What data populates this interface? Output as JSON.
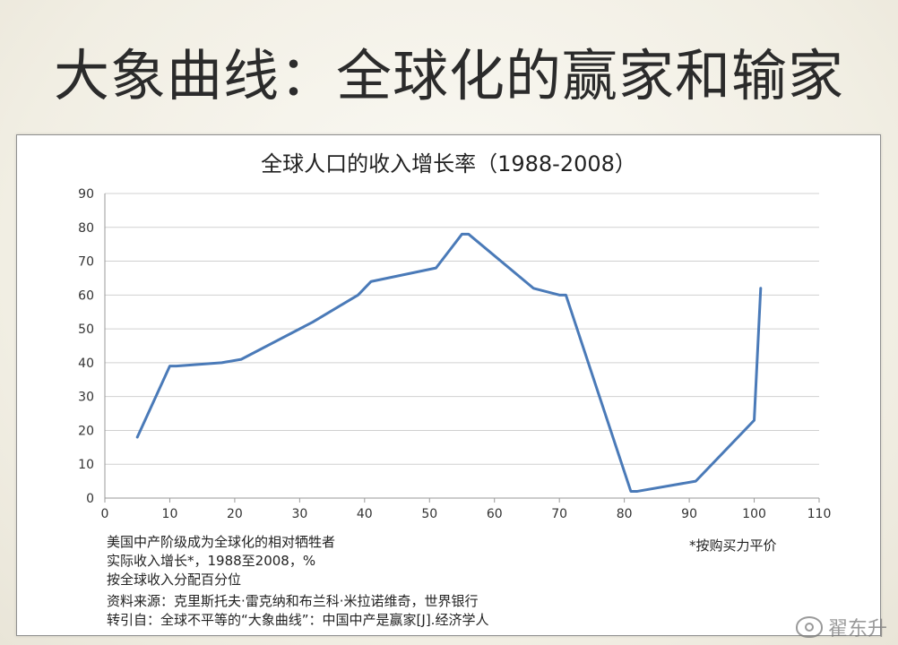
{
  "slide": {
    "title": "大象曲线：全球化的赢家和输家"
  },
  "chart_data": {
    "type": "line",
    "title": "全球人口的收入增长率（1988-2008）",
    "xlabel": "",
    "ylabel": "",
    "xlim": [
      0,
      110
    ],
    "ylim": [
      0,
      90
    ],
    "x_ticks": [
      0,
      10,
      20,
      30,
      40,
      50,
      60,
      70,
      80,
      90,
      100,
      110
    ],
    "y_ticks": [
      0,
      10,
      20,
      30,
      40,
      50,
      60,
      70,
      80,
      90
    ],
    "grid": "horizontal",
    "line_color": "#4a7ab8",
    "series": [
      {
        "x": [
          5,
          10,
          11,
          18,
          21,
          30,
          31,
          32,
          39,
          41,
          51,
          55,
          56,
          66,
          70,
          71,
          81,
          82,
          91,
          100,
          101
        ],
        "values": [
          18,
          39,
          39,
          40,
          41,
          50,
          51,
          52,
          60,
          64,
          68,
          78,
          78,
          62,
          60,
          60,
          2,
          2,
          5,
          23,
          62
        ]
      }
    ],
    "notes": [
      "美国中产阶级成为全球化的相对牺牲者",
      "实际收入增长*，1988至2008，%",
      "按全球收入分配百分位"
    ],
    "footnote": "*按购买力平价",
    "source": [
      "资料来源：克里斯托夫·雷克纳和布兰科·米拉诺维奇，世界银行",
      "转引自：全球不平等的“大象曲线”：中国中产是赢家[J].经济学人"
    ]
  },
  "watermark": "翟东升",
  "watermark_icon": "weibo-icon"
}
